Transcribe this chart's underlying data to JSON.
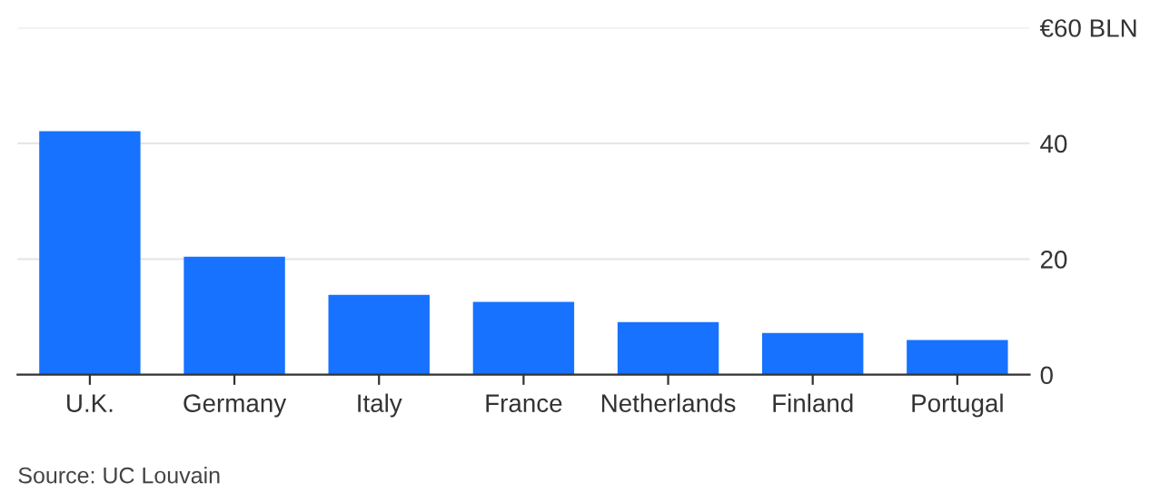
{
  "chart_data": {
    "type": "bar",
    "categories": [
      "U.K.",
      "Germany",
      "Italy",
      "France",
      "Netherlands",
      "Finland",
      "Portugal"
    ],
    "values": [
      42.1,
      20.4,
      13.8,
      12.6,
      9.1,
      7.2,
      6.0
    ],
    "color": "#1672ff",
    "ylim": [
      0,
      60
    ],
    "yticks": [
      0,
      20,
      40,
      {
        "value": 60,
        "label": "€60 BLN"
      }
    ],
    "grid": "y",
    "annotations": [
      "Source: UC Louvain"
    ]
  }
}
